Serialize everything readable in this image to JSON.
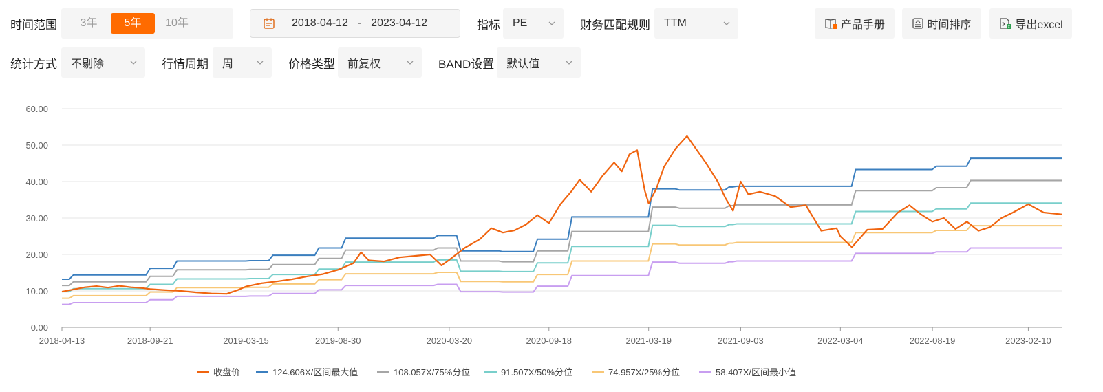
{
  "toolbar": {
    "time_range_label": "时间范围",
    "ranges": [
      "3年",
      "5年",
      "10年"
    ],
    "active_range": 1,
    "date_start": "2018-04-12",
    "date_sep": "-",
    "date_end": "2023-04-12",
    "indicator_label": "指标",
    "indicator_value": "PE",
    "match_label": "财务匹配规则",
    "match_value": "TTM",
    "manual_button": "产品手册",
    "sort_button": "时间排序",
    "export_button": "导出excel",
    "stat_label": "统计方式",
    "stat_value": "不剔除",
    "period_label": "行情周期",
    "period_value": "周",
    "price_label": "价格类型",
    "price_value": "前复权",
    "band_label": "BAND设置",
    "band_value": "默认值"
  },
  "colors": {
    "accent": "#ff6b00",
    "close": "#f0640f",
    "max": "#3b7fbf",
    "p75": "#a6a6a6",
    "p50": "#79cfcb",
    "p25": "#f8c776",
    "min": "#c89ef0"
  },
  "chart_data": {
    "type": "line",
    "ylim": [
      0,
      60
    ],
    "yticks": [
      "0.00",
      "10.00",
      "20.00",
      "30.00",
      "40.00",
      "50.00",
      "60.00"
    ],
    "xticks": [
      "2018-04-13",
      "2018-09-21",
      "2019-03-15",
      "2019-08-30",
      "2020-03-20",
      "2020-09-18",
      "2021-03-19",
      "2021-09-03",
      "2022-03-04",
      "2022-08-19",
      "2023-02-10"
    ],
    "x_start": "2018-04-13",
    "x_end": "2023-04-12",
    "close": [
      [
        "2018-04-13",
        9.8
      ],
      [
        "2018-05-04",
        10.4
      ],
      [
        "2018-05-25",
        11.0
      ],
      [
        "2018-06-15",
        11.3
      ],
      [
        "2018-07-06",
        10.9
      ],
      [
        "2018-07-27",
        11.4
      ],
      [
        "2018-08-17",
        11.0
      ],
      [
        "2018-09-07",
        10.8
      ],
      [
        "2018-09-21",
        10.5
      ],
      [
        "2018-10-19",
        10.2
      ],
      [
        "2018-11-16",
        10.0
      ],
      [
        "2018-12-14",
        9.6
      ],
      [
        "2019-01-11",
        9.3
      ],
      [
        "2019-02-08",
        9.2
      ],
      [
        "2019-03-01",
        10.3
      ],
      [
        "2019-03-15",
        11.2
      ],
      [
        "2019-04-12",
        12.1
      ],
      [
        "2019-05-10",
        12.6
      ],
      [
        "2019-06-07",
        13.2
      ],
      [
        "2019-07-05",
        14.0
      ],
      [
        "2019-08-02",
        14.6
      ],
      [
        "2019-08-30",
        15.8
      ],
      [
        "2019-09-27",
        17.6
      ],
      [
        "2019-10-11",
        20.6
      ],
      [
        "2019-10-25",
        18.4
      ],
      [
        "2019-11-22",
        18.1
      ],
      [
        "2019-12-20",
        19.2
      ],
      [
        "2020-01-17",
        19.6
      ],
      [
        "2020-02-14",
        20.0
      ],
      [
        "2020-03-06",
        17.0
      ],
      [
        "2020-03-20",
        18.5
      ],
      [
        "2020-04-17",
        21.8
      ],
      [
        "2020-05-15",
        24.2
      ],
      [
        "2020-06-05",
        27.2
      ],
      [
        "2020-06-26",
        26.0
      ],
      [
        "2020-07-17",
        26.6
      ],
      [
        "2020-08-07",
        28.2
      ],
      [
        "2020-08-28",
        30.8
      ],
      [
        "2020-09-18",
        28.6
      ],
      [
        "2020-10-09",
        33.8
      ],
      [
        "2020-10-30",
        37.5
      ],
      [
        "2020-11-13",
        40.5
      ],
      [
        "2020-12-04",
        37.2
      ],
      [
        "2020-12-25",
        41.6
      ],
      [
        "2021-01-15",
        45.2
      ],
      [
        "2021-01-29",
        42.8
      ],
      [
        "2021-02-12",
        47.5
      ],
      [
        "2021-02-26",
        48.6
      ],
      [
        "2021-03-12",
        37.5
      ],
      [
        "2021-03-19",
        34.0
      ],
      [
        "2021-04-02",
        38.0
      ],
      [
        "2021-04-16",
        44.0
      ],
      [
        "2021-05-07",
        49.0
      ],
      [
        "2021-05-28",
        52.5
      ],
      [
        "2021-06-11",
        49.5
      ],
      [
        "2021-07-02",
        45.0
      ],
      [
        "2021-07-23",
        40.0
      ],
      [
        "2021-08-06",
        35.5
      ],
      [
        "2021-08-20",
        32.0
      ],
      [
        "2021-09-03",
        40.0
      ],
      [
        "2021-09-17",
        36.5
      ],
      [
        "2021-10-08",
        37.2
      ],
      [
        "2021-11-05",
        36.0
      ],
      [
        "2021-12-03",
        33.0
      ],
      [
        "2021-12-31",
        33.5
      ],
      [
        "2022-01-28",
        26.5
      ],
      [
        "2022-02-25",
        27.2
      ],
      [
        "2022-03-04",
        25.0
      ],
      [
        "2022-03-25",
        22.0
      ],
      [
        "2022-04-22",
        26.8
      ],
      [
        "2022-05-20",
        27.0
      ],
      [
        "2022-06-17",
        31.5
      ],
      [
        "2022-07-08",
        33.5
      ],
      [
        "2022-07-29",
        31.0
      ],
      [
        "2022-08-19",
        29.0
      ],
      [
        "2022-09-09",
        30.0
      ],
      [
        "2022-09-30",
        27.0
      ],
      [
        "2022-10-21",
        29.0
      ],
      [
        "2022-11-11",
        26.5
      ],
      [
        "2022-12-02",
        27.5
      ],
      [
        "2022-12-23",
        30.0
      ],
      [
        "2023-01-13",
        31.5
      ],
      [
        "2023-02-10",
        33.8
      ],
      [
        "2023-03-10",
        31.5
      ],
      [
        "2023-04-12",
        31.0
      ]
    ],
    "series": [
      {
        "name": "124.606X/区间最大值",
        "key": "max",
        "values": [
          13.2,
          14.4,
          16.2,
          18.2,
          18.3,
          19.8,
          21.8,
          24.5,
          25.2,
          21.0,
          20.8,
          24.2,
          30.3,
          38.0,
          37.7,
          38.5,
          38.7,
          43.3,
          44.2,
          46.4,
          46.4
        ]
      },
      {
        "name": "108.057X/75%分位",
        "key": "p75",
        "values": [
          11.5,
          12.5,
          14.0,
          15.8,
          15.9,
          17.2,
          18.9,
          21.2,
          21.8,
          18.2,
          18.0,
          21.0,
          26.3,
          33.0,
          32.7,
          33.4,
          33.6,
          37.5,
          38.3,
          40.3,
          40.3
        ]
      },
      {
        "name": "91.507X/50%分位",
        "key": "p50",
        "values": [
          9.8,
          10.6,
          11.8,
          13.3,
          13.4,
          14.5,
          16.0,
          17.9,
          18.5,
          15.4,
          15.3,
          17.7,
          22.2,
          28.0,
          27.7,
          28.2,
          28.4,
          31.8,
          32.5,
          34.1,
          34.1
        ]
      },
      {
        "name": "74.957X/25%分位",
        "key": "p25",
        "values": [
          8.0,
          8.7,
          9.7,
          10.9,
          11.0,
          11.9,
          13.1,
          14.7,
          15.1,
          12.6,
          12.5,
          14.5,
          18.2,
          22.9,
          22.6,
          23.1,
          23.3,
          26.0,
          26.6,
          27.9,
          27.9
        ]
      },
      {
        "name": "58.407X/区间最小值",
        "key": "min",
        "values": [
          6.3,
          6.8,
          7.6,
          8.5,
          8.6,
          9.3,
          10.3,
          11.5,
          11.8,
          9.8,
          9.7,
          11.3,
          14.2,
          17.9,
          17.6,
          18.0,
          18.2,
          20.3,
          20.7,
          21.8,
          21.8
        ]
      }
    ],
    "band_dates": [
      "2018-04-13",
      "2018-05-04",
      "2018-09-21",
      "2018-11-09",
      "2019-03-22",
      "2019-05-03",
      "2019-07-26",
      "2019-09-13",
      "2020-02-28",
      "2020-04-10",
      "2020-06-26",
      "2020-08-28",
      "2020-10-30",
      "2021-03-26",
      "2021-05-14",
      "2021-08-13",
      "2021-08-27",
      "2022-04-01",
      "2022-08-26",
      "2022-10-28",
      "2023-04-12"
    ],
    "legend": [
      {
        "name": "收盘价",
        "key": "close"
      },
      {
        "name": "124.606X/区间最大值",
        "key": "max"
      },
      {
        "name": "108.057X/75%分位",
        "key": "p75"
      },
      {
        "name": "91.507X/50%分位",
        "key": "p50"
      },
      {
        "name": "74.957X/25%分位",
        "key": "p25"
      },
      {
        "name": "58.407X/区间最小值",
        "key": "min"
      }
    ],
    "grid": true,
    "legend_position": "bottom-center"
  }
}
